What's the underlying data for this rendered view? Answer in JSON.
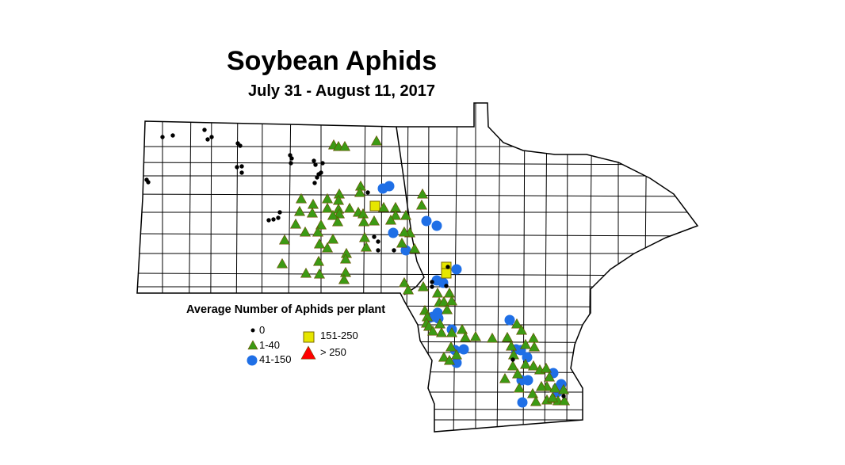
{
  "title": "Soybean Aphids",
  "subtitle": "July 31 - August 11, 2017",
  "legend": {
    "title": "Average Number of Aphids per plant",
    "items": [
      {
        "label": "0",
        "symbol": "dot",
        "color": "#000000"
      },
      {
        "label": "1-40",
        "symbol": "triangle",
        "color": "#3c9a14"
      },
      {
        "label": "41-150",
        "symbol": "circle",
        "color": "#1f6fe6"
      },
      {
        "label": "151-250",
        "symbol": "square",
        "color": "#e6e600"
      },
      {
        "label": "> 250",
        "symbol": "triangle",
        "color": "#ff0000"
      }
    ]
  }
}
